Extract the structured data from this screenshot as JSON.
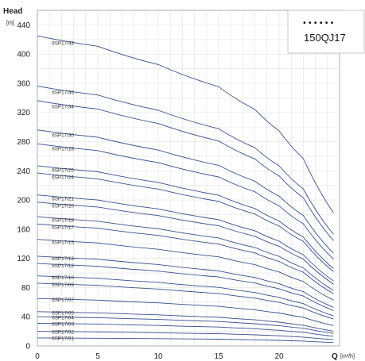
{
  "chart_data": {
    "type": "line",
    "ylabel": "Head",
    "yunit": "[m]",
    "xlabel": "Q",
    "xunit": "[m³/h]",
    "xlim": [
      0,
      25
    ],
    "ylim": [
      0,
      460
    ],
    "xticks": [
      0,
      5,
      10,
      15,
      20
    ],
    "yticks": [
      0,
      40,
      80,
      120,
      160,
      200,
      240,
      280,
      320,
      360,
      400,
      440
    ],
    "grid": true,
    "legend_box": {
      "dots": "••••••",
      "model": "150QJ17"
    },
    "x": [
      0,
      5,
      10,
      15,
      18,
      20,
      22,
      24.5
    ],
    "series": [
      {
        "name": "6SP17/01",
        "values": [
          11,
          10.6,
          10,
          9.2,
          8.4,
          7.6,
          6.6,
          4.7
        ]
      },
      {
        "name": "6SP17/02",
        "values": [
          20,
          19.3,
          18.1,
          16.7,
          15.2,
          13.9,
          12.1,
          8.6
        ]
      },
      {
        "name": "6SP17/03",
        "values": [
          31,
          30.0,
          28.1,
          25.9,
          23.6,
          21.4,
          18.7,
          13.2
        ]
      },
      {
        "name": "6SP17/04",
        "values": [
          40,
          38.7,
          36.3,
          33.5,
          30.5,
          27.8,
          24.2,
          17.2
        ]
      },
      {
        "name": "6SP17/05",
        "values": [
          47,
          45.4,
          42.6,
          39.3,
          35.8,
          32.6,
          28.4,
          20.2
        ]
      },
      {
        "name": "6SP17/07",
        "values": [
          65,
          62.8,
          59.0,
          54.3,
          49.6,
          45.1,
          39.3,
          27.9
        ]
      },
      {
        "name": "6SP17/09",
        "values": [
          86,
          83.1,
          78.0,
          71.9,
          65.6,
          59.7,
          52.0,
          36.9
        ]
      },
      {
        "name": "6SP17/10",
        "values": [
          96,
          92.8,
          87.1,
          80.3,
          73.2,
          66.6,
          58.1,
          41.2
        ]
      },
      {
        "name": "6SP17/12",
        "values": [
          113,
          109.2,
          102.5,
          94.5,
          86.2,
          78.4,
          68.4,
          48.5
        ]
      },
      {
        "name": "6SP17/13",
        "values": [
          123,
          118.9,
          111.6,
          102.9,
          93.8,
          85.3,
          74.4,
          52.8
        ]
      },
      {
        "name": "6SP17/15",
        "values": [
          146,
          141.1,
          132.4,
          122.1,
          111.4,
          101.3,
          88.3,
          62.7
        ]
      },
      {
        "name": "6SP17/17",
        "values": [
          167,
          161.4,
          151.5,
          139.6,
          127.4,
          115.8,
          101.0,
          71.7
        ]
      },
      {
        "name": "6SP17/18",
        "values": [
          177,
          171.0,
          160.6,
          148.0,
          135.0,
          122.8,
          107.0,
          76.0
        ]
      },
      {
        "name": "6SP17/20",
        "values": [
          197,
          190.4,
          178.7,
          164.7,
          150.3,
          136.6,
          119.1,
          84.6
        ]
      },
      {
        "name": "6SP17/21",
        "values": [
          207,
          200.0,
          187.8,
          173.1,
          157.9,
          143.6,
          125.1,
          88.9
        ]
      },
      {
        "name": "6SP17/24",
        "values": [
          237,
          229.0,
          215.0,
          198.1,
          180.8,
          164.4,
          143.3,
          101.8
        ]
      },
      {
        "name": "6SP17/25",
        "values": [
          247,
          238.7,
          224.1,
          206.5,
          188.4,
          171.3,
          149.3,
          106.1
        ]
      },
      {
        "name": "6SP17/28",
        "values": [
          277,
          267.7,
          251.3,
          231.6,
          211.3,
          192.1,
          167.5,
          119.0
        ]
      },
      {
        "name": "6SP17/30",
        "values": [
          296,
          286.0,
          268.5,
          247.5,
          225.8,
          205.3,
          178.9,
          127.1
        ]
      },
      {
        "name": "6SP17/34",
        "values": [
          336,
          324.7,
          304.8,
          280.9,
          256.3,
          233.0,
          203.1,
          144.3
        ]
      },
      {
        "name": "6SP17/36",
        "values": [
          356,
          344.0,
          323.0,
          297.6,
          271.6,
          246.9,
          215.2,
          152.9
        ]
      },
      {
        "name": "6SP17/43",
        "values": [
          425,
          410.7,
          385.6,
          355.3,
          324.2,
          294.8,
          256.9,
          182.5
        ]
      }
    ]
  }
}
